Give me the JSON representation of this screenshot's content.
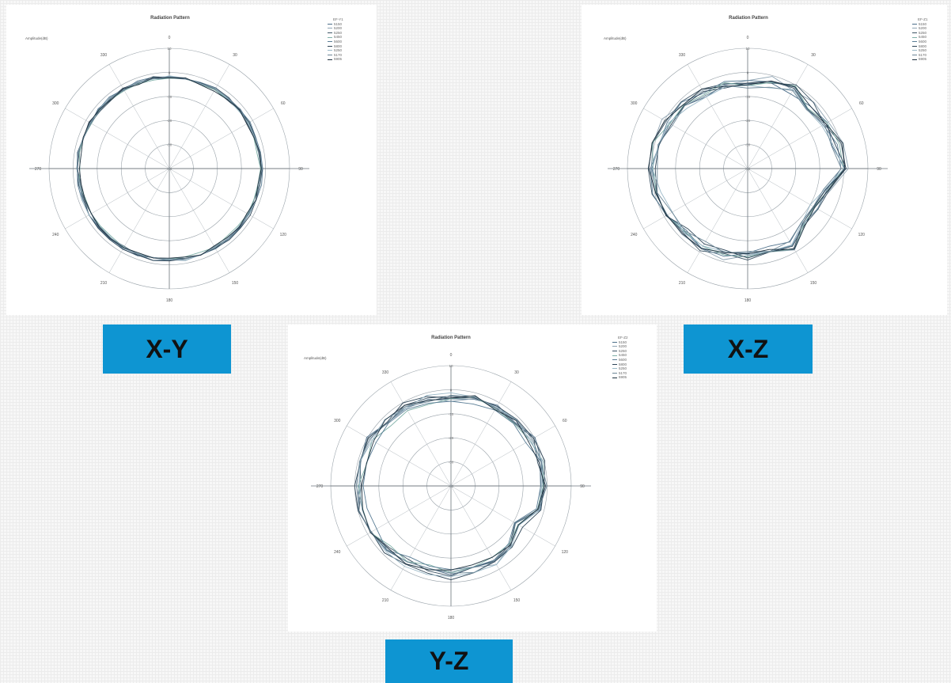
{
  "labels": {
    "xy": "X-Y",
    "xz": "X-Z",
    "yz": "Y-Z"
  },
  "chart_data": [
    {
      "type": "polar-line",
      "plane": "X-Y",
      "title": "Radiation Pattern",
      "amplitude_label": "Amplitude(dB)",
      "legend_title": "EF-Y1",
      "legend": [
        "5150",
        "5200",
        "5250",
        "5450",
        "5600",
        "5800",
        "5250",
        "5170",
        "5905"
      ],
      "angle_ticks": [
        0,
        30,
        60,
        90,
        120,
        150,
        180,
        210,
        240,
        270,
        300,
        330
      ],
      "radial_ticks": [
        10,
        0,
        -10,
        -20,
        -30,
        -40
      ],
      "rlim": [
        -40,
        10
      ],
      "series_count": 9,
      "base_level": -2,
      "level_noise": 0.6,
      "level_spread": 0.5
    },
    {
      "type": "polar-line",
      "plane": "X-Z",
      "title": "Radiation Pattern",
      "amplitude_label": "Amplitude(dB)",
      "legend_title": "EF-Z1",
      "legend": [
        "5150",
        "5200",
        "5250",
        "5450",
        "5600",
        "5800",
        "5250",
        "5170",
        "5905"
      ],
      "angle_ticks": [
        0,
        30,
        60,
        90,
        120,
        150,
        180,
        210,
        240,
        270,
        300,
        330
      ],
      "radial_ticks": [
        10,
        0,
        -10,
        -20,
        -30,
        -40
      ],
      "rlim": [
        -40,
        10
      ],
      "series_count": 9,
      "profile": [
        [
          0,
          -4.5
        ],
        [
          15,
          -3
        ],
        [
          30,
          -2
        ],
        [
          45,
          -3.5
        ],
        [
          60,
          -2.5
        ],
        [
          75,
          -1.5
        ],
        [
          90,
          0
        ],
        [
          105,
          -6
        ],
        [
          120,
          -8
        ],
        [
          135,
          -7
        ],
        [
          150,
          -2.5
        ],
        [
          165,
          -4.5
        ],
        [
          180,
          -4
        ],
        [
          195,
          -3.5
        ],
        [
          210,
          -2.5
        ],
        [
          225,
          -3
        ],
        [
          240,
          -1.5
        ],
        [
          255,
          -0.5
        ],
        [
          270,
          0
        ],
        [
          285,
          -0.5
        ],
        [
          300,
          -1.5
        ],
        [
          315,
          -2.5
        ],
        [
          330,
          -3.5
        ],
        [
          345,
          -4
        ]
      ],
      "level_noise": 1.6,
      "level_spread": 1.2
    },
    {
      "type": "polar-line",
      "plane": "Y-Z",
      "title": "Radiation Pattern",
      "amplitude_label": "Amplitude(dB)",
      "legend_title": "EF-Z2",
      "legend": [
        "5150",
        "5200",
        "5250",
        "5450",
        "5600",
        "5800",
        "5250",
        "5170",
        "5905"
      ],
      "angle_ticks": [
        0,
        30,
        60,
        90,
        120,
        150,
        180,
        210,
        240,
        270,
        300,
        330
      ],
      "radial_ticks": [
        10,
        0,
        -10,
        -20,
        -30,
        -40
      ],
      "rlim": [
        -40,
        10
      ],
      "series_count": 9,
      "profile": [
        [
          0,
          -3.5
        ],
        [
          15,
          -2.5
        ],
        [
          30,
          -2.5
        ],
        [
          45,
          -2
        ],
        [
          60,
          -1.5
        ],
        [
          75,
          -1
        ],
        [
          90,
          -1.5
        ],
        [
          105,
          -3
        ],
        [
          120,
          -8
        ],
        [
          135,
          -6.5
        ],
        [
          150,
          -4
        ],
        [
          165,
          -4.5
        ],
        [
          180,
          -3.5
        ],
        [
          195,
          -4
        ],
        [
          210,
          -3.5
        ],
        [
          225,
          -2.5
        ],
        [
          240,
          -2
        ],
        [
          255,
          -1.5
        ],
        [
          270,
          -1.5
        ],
        [
          285,
          -2
        ],
        [
          300,
          -1.5
        ],
        [
          315,
          -2.5
        ],
        [
          330,
          -2
        ],
        [
          345,
          -3
        ]
      ],
      "level_noise": 1.6,
      "level_spread": 1.2
    }
  ]
}
